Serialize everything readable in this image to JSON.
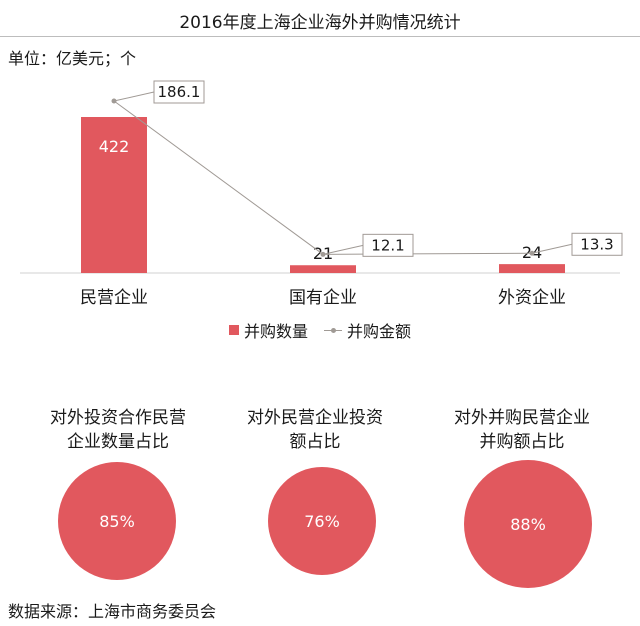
{
  "title": "2016年度上海企业海外并购情况统计",
  "unit": "单位：亿美元；个",
  "chart_data": {
    "type": "bar",
    "categories": [
      "民营企业",
      "国有企业",
      "外资企业"
    ],
    "series": [
      {
        "name": "并购数量",
        "type": "bar",
        "values": [
          422,
          21,
          24
        ],
        "color": "#e1585e"
      },
      {
        "name": "并购金额",
        "type": "line",
        "values": [
          186.1,
          12.1,
          13.3
        ],
        "color": "#a09a95"
      }
    ],
    "ylim": [
      0,
      422
    ],
    "grid": false,
    "legend": "bottom"
  },
  "stats": [
    {
      "label": "对外投资合作民营企业数量占比",
      "value": "85%",
      "fraction": 0.85
    },
    {
      "label": "对外民营企业投资额占比",
      "value": "76%",
      "fraction": 0.76
    },
    {
      "label": "对外并购民营企业并购额占比",
      "value": "88%",
      "fraction": 0.88
    }
  ],
  "source": "数据来源：上海市商务委员会"
}
